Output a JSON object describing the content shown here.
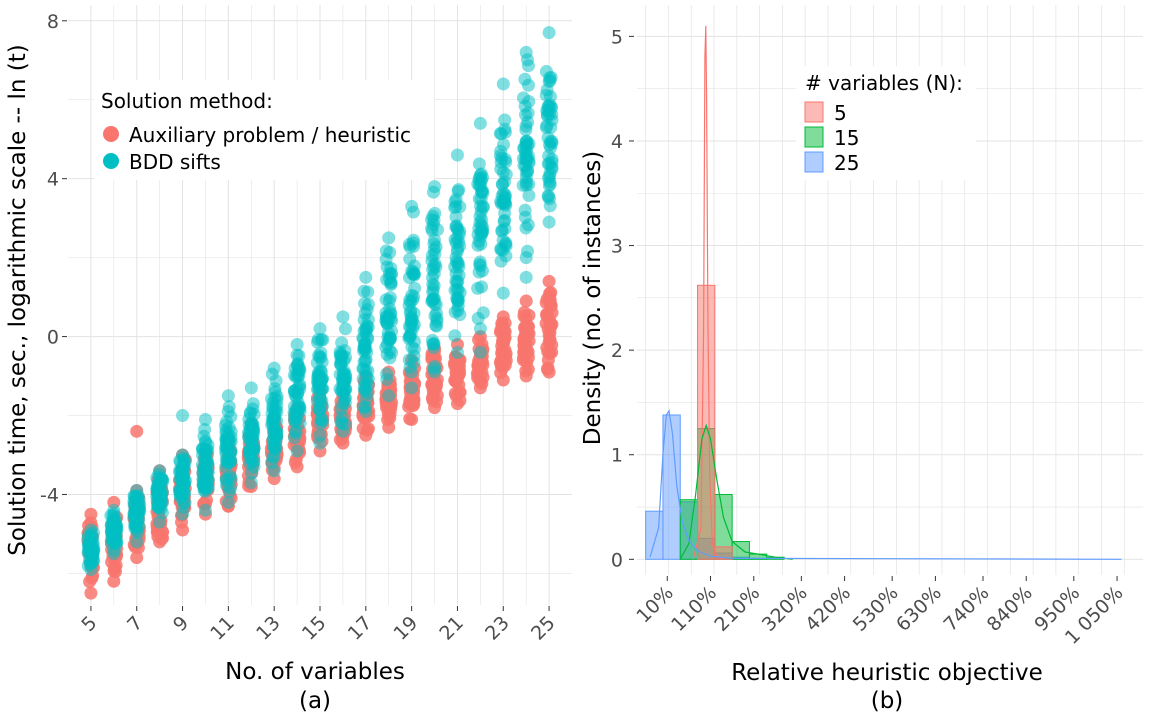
{
  "chart_data": [
    {
      "type": "scatter",
      "panel_label": "(a)",
      "xlabel": "No. of variables",
      "ylabel": "Solution time, sec., logarithmic scale -- ln (t)",
      "x_ticks": [
        "5",
        "7",
        "9",
        "11",
        "13",
        "15",
        "17",
        "19",
        "21",
        "23",
        "25"
      ],
      "y_ticks": [
        "-4",
        "0",
        "4",
        "8"
      ],
      "xlim": [
        4,
        26
      ],
      "ylim": [
        -6.8,
        8.4
      ],
      "grid": true,
      "legend": {
        "title": "Solution method:",
        "placement": "top-left",
        "entries": [
          "Auxiliary problem / heuristic",
          "BDD sifts"
        ]
      },
      "colors": {
        "Auxiliary problem / heuristic": "#F8766D",
        "BDD sifts": "#00BFC4"
      },
      "x": [
        5,
        6,
        7,
        8,
        9,
        10,
        11,
        12,
        13,
        14,
        15,
        16,
        17,
        18,
        19,
        20,
        21,
        22,
        23,
        24,
        25
      ],
      "series": [
        {
          "name": "Auxiliary problem / heuristic",
          "y_min": [
            -6.5,
            -6.2,
            -5.6,
            -5.2,
            -4.9,
            -4.5,
            -4.3,
            -3.8,
            -3.6,
            -3.3,
            -2.9,
            -2.7,
            -2.5,
            -2.3,
            -2.1,
            -1.8,
            -1.7,
            -1.3,
            -1.1,
            -1.0,
            -0.9
          ],
          "y_max": [
            -4.5,
            -4.2,
            -3.9,
            -3.4,
            -3.0,
            -2.9,
            -2.7,
            -2.2,
            -2.1,
            -1.8,
            -1.4,
            -1.5,
            -1.0,
            -0.9,
            -0.6,
            -0.3,
            -0.2,
            0.0,
            0.5,
            0.9,
            1.4
          ],
          "outliers": [
            [
              7,
              -2.4
            ]
          ]
        },
        {
          "name": "BDD sifts",
          "y_min": [
            -5.9,
            -5.5,
            -5.2,
            -4.7,
            -4.5,
            -4.4,
            -4.2,
            -3.7,
            -3.4,
            -2.9,
            -2.7,
            -2.4,
            -1.9,
            -1.5,
            -1.3,
            -0.9,
            -0.4,
            0.2,
            1.1,
            2.0,
            2.9
          ],
          "y_max": [
            -4.9,
            -4.4,
            -3.9,
            -3.4,
            -3.0,
            -2.1,
            -1.5,
            -1.3,
            -0.8,
            -0.2,
            0.2,
            0.5,
            1.5,
            2.5,
            3.3,
            3.8,
            4.6,
            5.4,
            6.4,
            7.2,
            7.7
          ],
          "outliers": [
            [
              9,
              -2.0
            ],
            [
              15,
              -2.5
            ],
            [
              16,
              -1.7
            ],
            [
              19,
              -0.9
            ],
            [
              22,
              -0.4
            ],
            [
              24,
              1.5
            ]
          ]
        }
      ]
    },
    {
      "type": "histogram",
      "panel_label": "(b)",
      "xlabel": "Relative heuristic objective",
      "ylabel": "Density (no. of instances)",
      "x_ticks": [
        "10%",
        "110%",
        "210%",
        "320%",
        "420%",
        "530%",
        "630%",
        "740%",
        "840%",
        "950%",
        "1 050%"
      ],
      "x_tick_values": [
        10,
        110,
        210,
        320,
        420,
        530,
        630,
        740,
        840,
        950,
        1050
      ],
      "y_ticks": [
        "0",
        "1",
        "2",
        "3",
        "4",
        "5"
      ],
      "xlim": [
        -60,
        1110
      ],
      "ylim": [
        -0.15,
        5.3
      ],
      "grid": true,
      "legend": {
        "title": "# variables (N):",
        "placement": "top-right",
        "entries": [
          "5",
          "15",
          "25"
        ]
      },
      "colors": {
        "5": "#F8766D",
        "15": "#00BA38",
        "25": "#619CFF"
      },
      "bin_width": 40,
      "bins": [
        {
          "series": "25",
          "x0": -40,
          "value": 0.46
        },
        {
          "series": "25",
          "x0": 0,
          "value": 1.38
        },
        {
          "series": "25",
          "x0": 40,
          "value": 0.55
        },
        {
          "series": "25",
          "x0": 80,
          "value": 0.2
        },
        {
          "series": "25",
          "x0": 120,
          "value": 0.06
        },
        {
          "series": "25",
          "x0": 160,
          "value": 0.02
        },
        {
          "series": "25",
          "x0": 200,
          "value": 0.01
        },
        {
          "series": "15",
          "x0": 40,
          "value": 0.57
        },
        {
          "series": "15",
          "x0": 80,
          "value": 1.25
        },
        {
          "series": "15",
          "x0": 120,
          "value": 0.62
        },
        {
          "series": "15",
          "x0": 160,
          "value": 0.17
        },
        {
          "series": "15",
          "x0": 200,
          "value": 0.05
        },
        {
          "series": "15",
          "x0": 240,
          "value": 0.02
        },
        {
          "series": "5",
          "x0": 80,
          "value": 2.62
        },
        {
          "series": "5",
          "x0": 120,
          "value": 0.12
        }
      ],
      "density_curves": [
        {
          "series": "5",
          "points": [
            [
              70,
              0
            ],
            [
              88,
              0.3
            ],
            [
              94,
              2.2
            ],
            [
              97,
              4.8
            ],
            [
              99,
              5.1
            ],
            [
              101,
              4.4
            ],
            [
              104,
              2.3
            ],
            [
              108,
              0.8
            ],
            [
              114,
              0.15
            ],
            [
              125,
              0.02
            ],
            [
              140,
              0
            ]
          ]
        },
        {
          "series": "15",
          "points": [
            [
              40,
              0
            ],
            [
              60,
              0.15
            ],
            [
              75,
              0.6
            ],
            [
              90,
              1.15
            ],
            [
              100,
              1.28
            ],
            [
              110,
              1.15
            ],
            [
              125,
              0.75
            ],
            [
              140,
              0.4
            ],
            [
              160,
              0.17
            ],
            [
              190,
              0.07
            ],
            [
              220,
              0.05
            ],
            [
              260,
              0.02
            ],
            [
              300,
              0
            ]
          ]
        },
        {
          "series": "25",
          "points": [
            [
              -30,
              0.02
            ],
            [
              -10,
              0.3
            ],
            [
              0,
              1.0
            ],
            [
              8,
              1.38
            ],
            [
              14,
              1.42
            ],
            [
              22,
              1.2
            ],
            [
              32,
              0.7
            ],
            [
              45,
              0.35
            ],
            [
              60,
              0.18
            ],
            [
              80,
              0.08
            ],
            [
              110,
              0.03
            ],
            [
              160,
              0.01
            ],
            [
              1060,
              0.0
            ]
          ]
        }
      ]
    }
  ]
}
